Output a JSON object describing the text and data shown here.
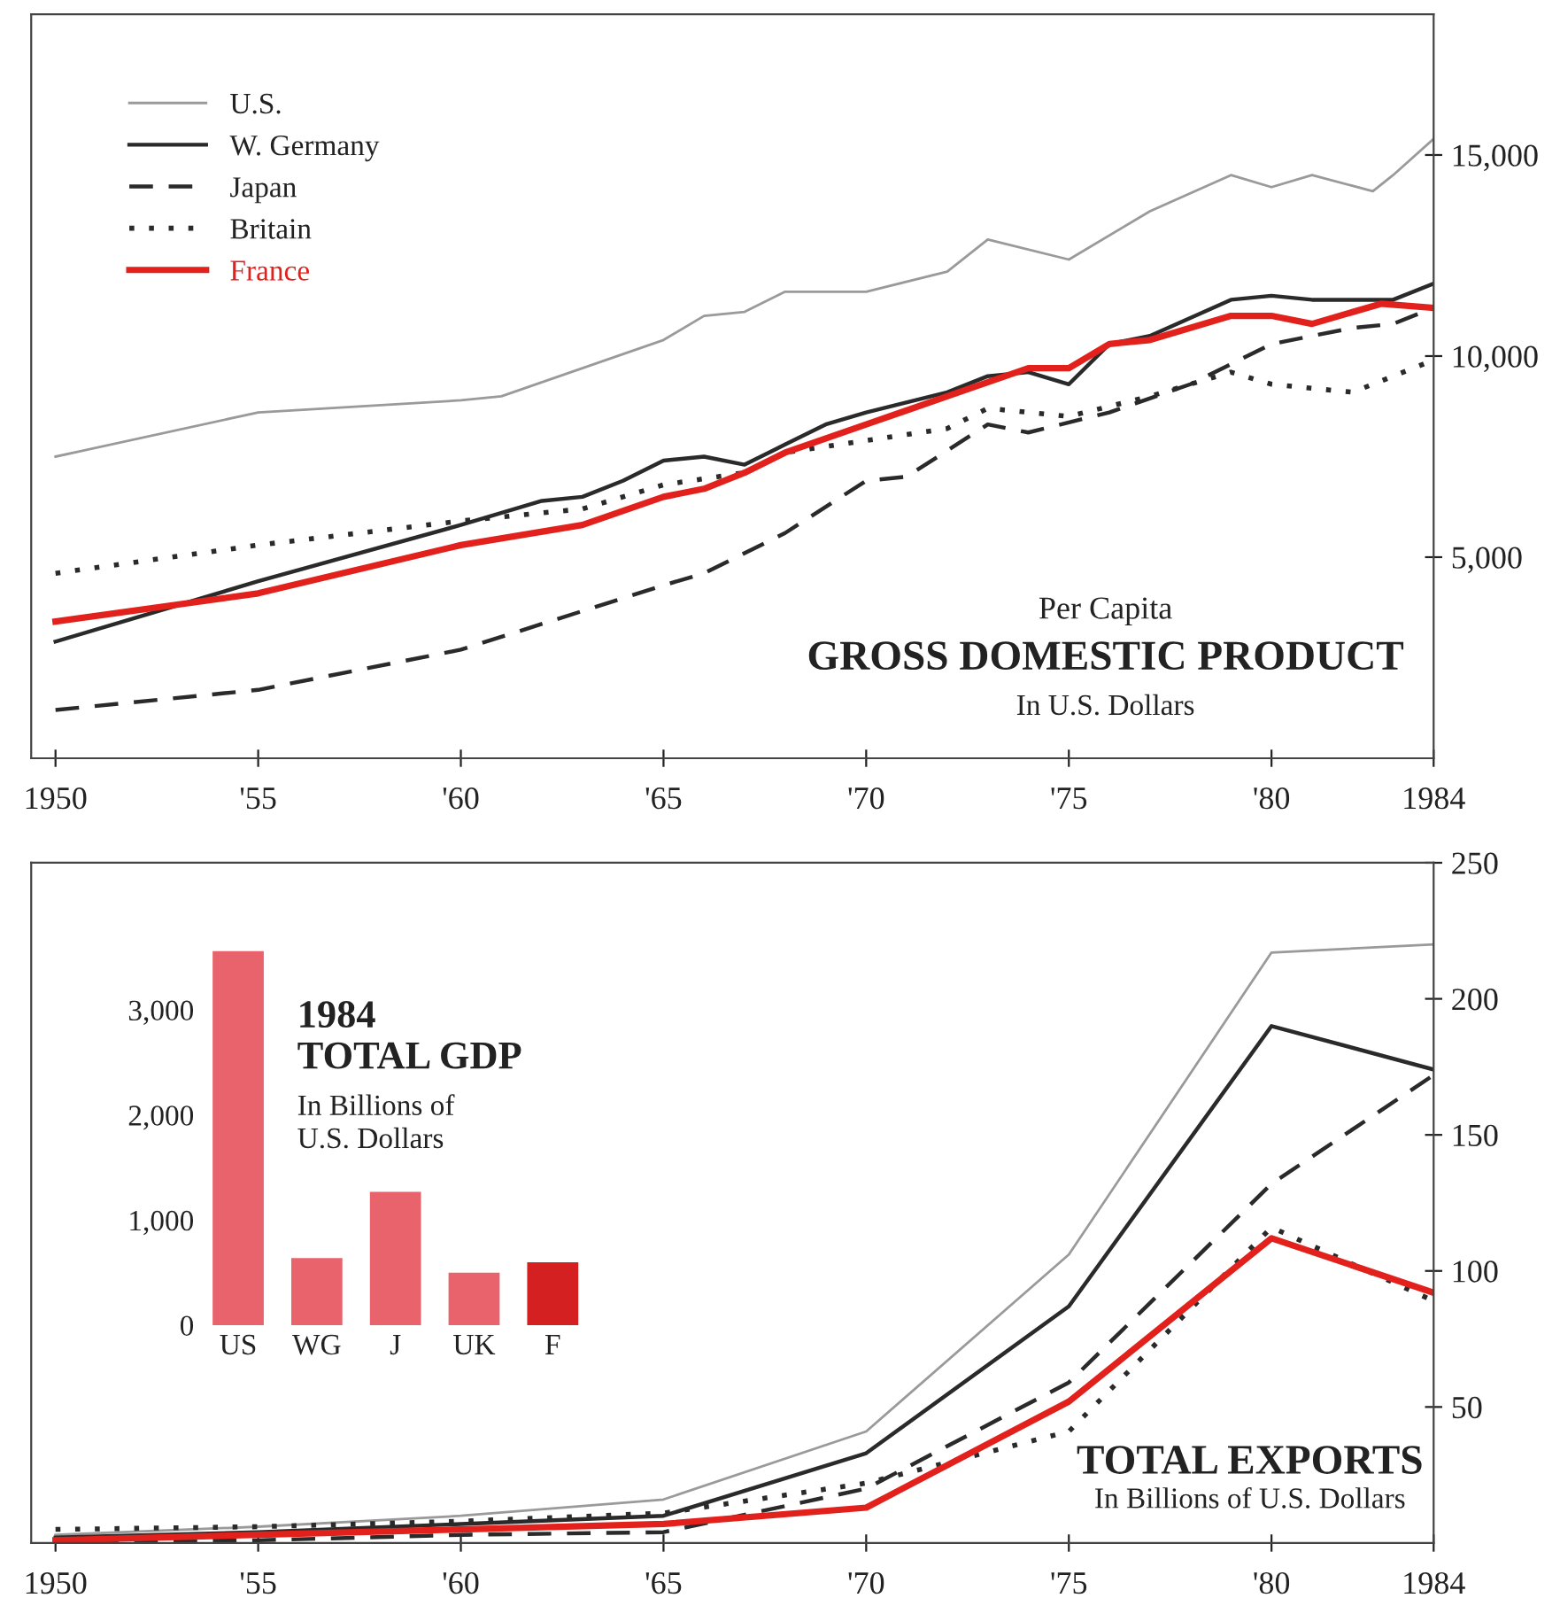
{
  "chart_data": [
    {
      "type": "line",
      "title": "GROSS DOMESTIC PRODUCT",
      "subtitle": "Per Capita",
      "annotations": [
        "In U.S. Dollars"
      ],
      "xlim": [
        1949.4,
        1984
      ],
      "xticks": [
        1950,
        {
          "value": 1955,
          "label": "'55"
        },
        {
          "value": 1960,
          "label": "'60"
        },
        {
          "value": 1965,
          "label": "'65"
        },
        {
          "value": 1970,
          "label": "'70"
        },
        {
          "value": 1975,
          "label": "'75"
        },
        {
          "value": 1980,
          "label": "'80"
        },
        1984
      ],
      "ylim": [
        0,
        18500
      ],
      "yticks": [
        {
          "value": 5000,
          "label": "5,000"
        },
        {
          "value": 10000,
          "label": "10,000"
        },
        {
          "value": 15000,
          "label": "15,000"
        }
      ],
      "legend": "top left",
      "series": [
        {
          "name": "U.S.",
          "color": "#9a9a9a",
          "line_style": "solid",
          "x": [
            1950,
            1955,
            1960,
            1961,
            1965,
            1966,
            1967,
            1968,
            1970,
            1972,
            1973,
            1975,
            1977,
            1979,
            1980,
            1981,
            1982.5,
            1983,
            1984
          ],
          "values": [
            7500,
            8600,
            8900,
            9000,
            10400,
            11000,
            11100,
            11600,
            11600,
            12100,
            12900,
            12400,
            13600,
            14500,
            14200,
            14500,
            14100,
            14500,
            15400
          ]
        },
        {
          "name": "W. Germany",
          "color": "#2a2a2a",
          "line_style": "solid",
          "x": [
            1950,
            1955,
            1960,
            1962,
            1963,
            1964,
            1965,
            1966,
            1967,
            1968,
            1969,
            1970,
            1972,
            1973,
            1974,
            1975,
            1976,
            1977,
            1979,
            1980,
            1981,
            1983,
            1984
          ],
          "values": [
            2900,
            4400,
            5800,
            6400,
            6500,
            6900,
            7400,
            7500,
            7300,
            7800,
            8300,
            8600,
            9100,
            9500,
            9600,
            9300,
            10300,
            10500,
            11400,
            11500,
            11400,
            11400,
            11800
          ]
        },
        {
          "name": "Japan",
          "color": "#2a2a2a",
          "line_style": "dashed",
          "x": [
            1950,
            1955,
            1960,
            1965,
            1966,
            1968,
            1970,
            1971,
            1973,
            1974,
            1976,
            1978,
            1980,
            1982,
            1983,
            1984
          ],
          "values": [
            1200,
            1700,
            2700,
            4300,
            4600,
            5600,
            6900,
            7000,
            8300,
            8100,
            8600,
            9300,
            10300,
            10700,
            10800,
            11200
          ]
        },
        {
          "name": "Britain",
          "color": "#2a2a2a",
          "line_style": "dotted",
          "x": [
            1950,
            1955,
            1960,
            1963,
            1965,
            1967,
            1968,
            1970,
            1972,
            1973,
            1975,
            1977,
            1979,
            1980,
            1982,
            1984
          ],
          "values": [
            4600,
            5300,
            5900,
            6200,
            6800,
            7100,
            7600,
            7900,
            8200,
            8700,
            8500,
            9000,
            9600,
            9300,
            9100,
            9900
          ]
        },
        {
          "name": "France",
          "color": "#e3211c",
          "line_style": "solid",
          "x": [
            1950,
            1955,
            1960,
            1963,
            1965,
            1966,
            1967,
            1968,
            1970,
            1972,
            1974,
            1975,
            1976,
            1977,
            1979,
            1980,
            1981,
            1982.7,
            1984
          ],
          "values": [
            3400,
            4100,
            5300,
            5800,
            6500,
            6700,
            7100,
            7600,
            8300,
            9000,
            9700,
            9700,
            10300,
            10400,
            11000,
            11000,
            10800,
            11300,
            11200
          ]
        }
      ]
    },
    {
      "type": "line",
      "title": "TOTAL EXPORTS",
      "annotations": [
        "In Billions of U.S. Dollars"
      ],
      "xlim": [
        1949.4,
        1984
      ],
      "xticks": [
        1950,
        {
          "value": 1955,
          "label": "'55"
        },
        {
          "value": 1960,
          "label": "'60"
        },
        {
          "value": 1965,
          "label": "'65"
        },
        {
          "value": 1970,
          "label": "'70"
        },
        {
          "value": 1975,
          "label": "'75"
        },
        {
          "value": 1980,
          "label": "'80"
        },
        1984
      ],
      "ylim": [
        0,
        250
      ],
      "yticks": [
        50,
        100,
        150,
        200,
        250
      ],
      "x": [
        1950,
        1955,
        1960,
        1965,
        1970,
        1975,
        1980,
        1984
      ],
      "series": [
        {
          "color": "#9a9a9a",
          "line_style": "solid",
          "values": [
            3,
            6,
            10,
            16,
            41,
            106,
            217,
            220
          ]
        },
        {
          "color": "#2a2a2a",
          "line_style": "solid",
          "values": [
            2,
            4,
            7,
            10,
            33,
            87,
            190,
            174
          ]
        },
        {
          "color": "#2a2a2a",
          "line_style": "dashed",
          "values": [
            0.5,
            1,
            3,
            4,
            20,
            59,
            132,
            172
          ]
        },
        {
          "color": "#2a2a2a",
          "line_style": "dotted",
          "values": [
            5,
            6,
            8,
            11,
            22,
            41,
            116,
            89
          ]
        },
        {
          "color": "#e3211c",
          "line_style": "solid",
          "values": [
            1,
            3,
            5,
            7,
            13,
            52,
            112,
            92
          ]
        }
      ]
    },
    {
      "type": "bar",
      "title": "1984\nTOTAL GDP",
      "annotations": [
        "In Billions of\nU.S. Dollars"
      ],
      "categories": [
        "US",
        "WG",
        "J",
        "UK",
        "F"
      ],
      "values": [
        3560,
        640,
        1270,
        500,
        600
      ],
      "colors": [
        "#e8636b",
        "#e8636b",
        "#e8636b",
        "#e8636b",
        "#d42020"
      ],
      "ylim": [
        0,
        3600
      ],
      "yticks": [
        0,
        {
          "value": 1000,
          "label": "1,000"
        },
        {
          "value": 2000,
          "label": "2,000"
        },
        {
          "value": 3000,
          "label": "3,000"
        }
      ]
    }
  ]
}
